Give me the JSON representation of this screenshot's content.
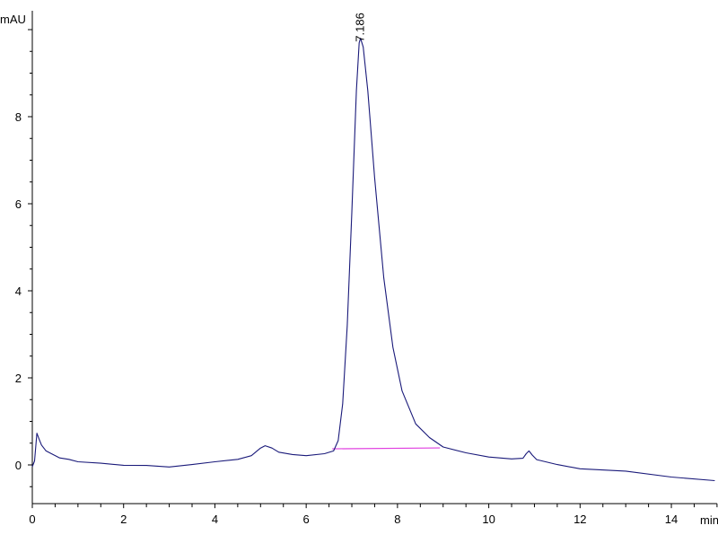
{
  "chart_data": {
    "type": "line",
    "title": "",
    "xlabel": "min",
    "ylabel": "mAU",
    "xlim": [
      0,
      15
    ],
    "ylim": [
      -0.89,
      10.4
    ],
    "x_ticks": [
      0,
      2,
      4,
      6,
      8,
      10,
      12,
      14
    ],
    "y_ticks": [
      0,
      2,
      4,
      6,
      8
    ],
    "grid": false,
    "colors": {
      "trace": "#1a1a7a",
      "baseline": "#e040e0",
      "axis": "#000000"
    },
    "series": [
      {
        "x": [
          0,
          0.05,
          0.1,
          0.15,
          0.2,
          0.3,
          0.4,
          0.6,
          0.8,
          1,
          1.5,
          2,
          2.5,
          3,
          3.5,
          4,
          4.5,
          4.8,
          5.0,
          5.1,
          5.25,
          5.4,
          5.7,
          6,
          6.4,
          6.6,
          6.7,
          6.8,
          6.9,
          7.0,
          7.1,
          7.16,
          7.19,
          7.25,
          7.35,
          7.5,
          7.7,
          7.9,
          8.1,
          8.4,
          8.7,
          9,
          9.5,
          10,
          10.5,
          10.75,
          10.82,
          10.88,
          10.95,
          11.05,
          11.5,
          12,
          13,
          14,
          14.95
        ],
        "y": [
          -0.05,
          0.1,
          0.72,
          0.6,
          0.45,
          0.33,
          0.26,
          0.17,
          0.12,
          0.08,
          0.03,
          0.0,
          -0.02,
          -0.04,
          0.0,
          0.08,
          0.12,
          0.22,
          0.38,
          0.45,
          0.38,
          0.3,
          0.23,
          0.22,
          0.25,
          0.33,
          0.55,
          1.4,
          3.2,
          5.8,
          8.6,
          9.7,
          9.8,
          9.6,
          8.6,
          6.6,
          4.3,
          2.7,
          1.7,
          0.95,
          0.62,
          0.42,
          0.27,
          0.19,
          0.13,
          0.16,
          0.25,
          0.33,
          0.22,
          0.13,
          0.0,
          -0.08,
          -0.15,
          -0.27,
          -0.37
        ]
      }
    ],
    "baseline_segment": {
      "x": [
        6.57,
        8.93
      ],
      "y": [
        0.37,
        0.39
      ]
    },
    "annotations": [
      {
        "text": "7.186",
        "x": 7.186,
        "y": 9.8
      }
    ]
  }
}
